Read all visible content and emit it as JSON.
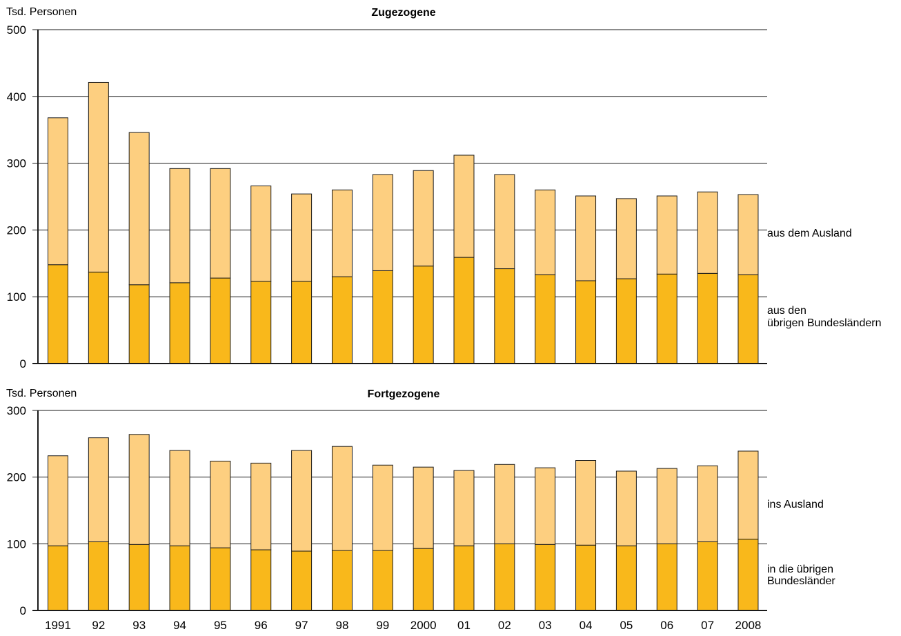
{
  "chart_data": [
    {
      "type": "bar",
      "stacked": true,
      "title": "Zugezogene",
      "ylabel": "Tsd. Personen",
      "ylim": [
        0,
        500
      ],
      "yticks": [
        0,
        100,
        200,
        300,
        400,
        500
      ],
      "grid": true,
      "categories": [
        "1991",
        "92",
        "93",
        "94",
        "95",
        "96",
        "97",
        "98",
        "99",
        "2000",
        "01",
        "02",
        "03",
        "04",
        "05",
        "06",
        "07",
        "2008"
      ],
      "series": [
        {
          "name": "aus den übrigen Bundesländern",
          "color": "#f9b81b",
          "values": [
            148,
            137,
            118,
            121,
            128,
            123,
            123,
            130,
            139,
            146,
            159,
            142,
            133,
            124,
            127,
            134,
            135,
            133
          ]
        },
        {
          "name": "aus dem Ausland",
          "color": "#fdcf80",
          "values": [
            220,
            284,
            228,
            171,
            164,
            143,
            131,
            130,
            144,
            143,
            153,
            141,
            127,
            127,
            120,
            117,
            122,
            120
          ]
        }
      ],
      "legend_lines": [
        [
          "aus dem Ausland"
        ],
        [
          "aus den",
          "übrigen Bundesländern"
        ]
      ]
    },
    {
      "type": "bar",
      "stacked": true,
      "title": "Fortgezogene",
      "ylabel": "Tsd. Personen",
      "ylim": [
        0,
        300
      ],
      "yticks": [
        0,
        100,
        200,
        300
      ],
      "grid": true,
      "categories": [
        "1991",
        "92",
        "93",
        "94",
        "95",
        "96",
        "97",
        "98",
        "99",
        "2000",
        "01",
        "02",
        "03",
        "04",
        "05",
        "06",
        "07",
        "2008"
      ],
      "series": [
        {
          "name": "in die übrigen Bundesländer",
          "color": "#f9b81b",
          "values": [
            97,
            103,
            99,
            97,
            94,
            91,
            89,
            90,
            90,
            93,
            97,
            100,
            99,
            98,
            97,
            100,
            103,
            107
          ]
        },
        {
          "name": "ins Ausland",
          "color": "#fdcf80",
          "values": [
            135,
            156,
            165,
            143,
            130,
            130,
            151,
            156,
            128,
            122,
            113,
            119,
            115,
            127,
            112,
            113,
            114,
            132
          ]
        }
      ],
      "legend_lines": [
        [
          "ins Ausland"
        ],
        [
          "in die übrigen",
          "Bundesländer"
        ]
      ]
    }
  ]
}
